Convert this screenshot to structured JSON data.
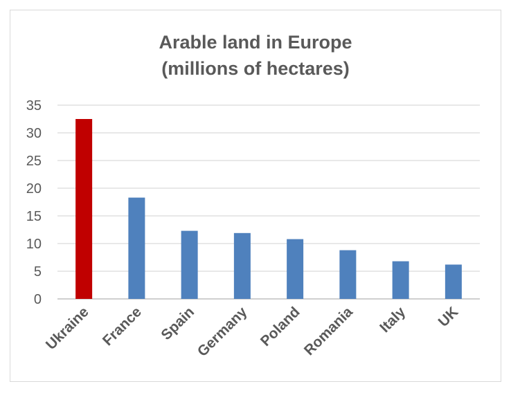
{
  "chart_data": {
    "type": "bar",
    "title_line1": "Arable land in Europe",
    "title_line2": "(millions of hectares)",
    "categories": [
      "Ukraine",
      "France",
      "Spain",
      "Germany",
      "Poland",
      "Romania",
      "Italy",
      "UK"
    ],
    "values": [
      32.5,
      18.3,
      12.3,
      11.9,
      10.8,
      8.8,
      6.8,
      6.2
    ],
    "colors": [
      "#c00000",
      "#4f81bd",
      "#4f81bd",
      "#4f81bd",
      "#4f81bd",
      "#4f81bd",
      "#4f81bd",
      "#4f81bd"
    ],
    "ylim": [
      0,
      35
    ],
    "yticks": [
      "0",
      "5",
      "10",
      "15",
      "20",
      "25",
      "30",
      "35"
    ],
    "grid": true,
    "legend": "none"
  }
}
